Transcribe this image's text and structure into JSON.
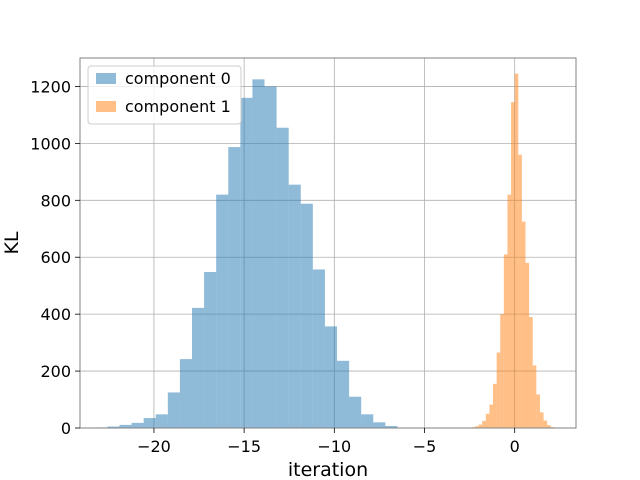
{
  "chart_data": {
    "type": "histogram",
    "title": "",
    "xlabel": "iteration",
    "ylabel": "KL",
    "xlim": [
      -24.1,
      3.4
    ],
    "ylim": [
      0,
      1300
    ],
    "x_ticks": [
      -20,
      -15,
      -10,
      -5,
      0
    ],
    "x_tick_labels": [
      "−20",
      "−15",
      "−10",
      "−5",
      "0"
    ],
    "y_ticks": [
      0,
      200,
      400,
      600,
      800,
      1000,
      1200
    ],
    "y_tick_labels": [
      "0",
      "200",
      "400",
      "600",
      "800",
      "1000",
      "1200"
    ],
    "grid": true,
    "legend_position": "top-left",
    "series": [
      {
        "name": "component 0",
        "color": "#1f77b4",
        "opacity": 0.5,
        "bins": [
          [
            -23.25,
            -22.58,
            2
          ],
          [
            -22.58,
            -21.91,
            5
          ],
          [
            -21.91,
            -21.24,
            11
          ],
          [
            -21.24,
            -20.57,
            18
          ],
          [
            -20.57,
            -19.9,
            35
          ],
          [
            -19.9,
            -19.23,
            48
          ],
          [
            -19.23,
            -18.56,
            125
          ],
          [
            -18.56,
            -17.89,
            242
          ],
          [
            -17.89,
            -17.22,
            422
          ],
          [
            -17.22,
            -16.55,
            548
          ],
          [
            -16.55,
            -15.88,
            820
          ],
          [
            -15.88,
            -15.21,
            987
          ],
          [
            -15.21,
            -14.54,
            1160
          ],
          [
            -14.54,
            -13.87,
            1225
          ],
          [
            -13.87,
            -13.2,
            1200
          ],
          [
            -13.2,
            -12.53,
            1055
          ],
          [
            -12.53,
            -11.86,
            855
          ],
          [
            -11.86,
            -11.19,
            788
          ],
          [
            -11.19,
            -10.52,
            557
          ],
          [
            -10.52,
            -9.85,
            357
          ],
          [
            -9.85,
            -9.18,
            236
          ],
          [
            -9.18,
            -8.51,
            110
          ],
          [
            -8.51,
            -7.84,
            48
          ],
          [
            -7.84,
            -7.17,
            20
          ],
          [
            -7.17,
            -6.5,
            7
          ]
        ]
      },
      {
        "name": "component 1",
        "color": "#ff7f0e",
        "opacity": 0.5,
        "bins": [
          [
            -2.4,
            -2.2,
            3
          ],
          [
            -2.2,
            -2.0,
            6
          ],
          [
            -2.0,
            -1.8,
            12
          ],
          [
            -1.8,
            -1.6,
            25
          ],
          [
            -1.6,
            -1.4,
            50
          ],
          [
            -1.4,
            -1.2,
            82
          ],
          [
            -1.2,
            -1.0,
            155
          ],
          [
            -1.0,
            -0.8,
            265
          ],
          [
            -0.8,
            -0.6,
            400
          ],
          [
            -0.6,
            -0.4,
            610
          ],
          [
            -0.4,
            -0.2,
            820
          ],
          [
            -0.2,
            0.0,
            1145
          ],
          [
            0.0,
            0.2,
            1245
          ],
          [
            0.2,
            0.4,
            960
          ],
          [
            0.4,
            0.6,
            725
          ],
          [
            0.6,
            0.8,
            580
          ],
          [
            0.8,
            1.0,
            390
          ],
          [
            1.0,
            1.2,
            220
          ],
          [
            1.2,
            1.4,
            118
          ],
          [
            1.4,
            1.6,
            55
          ],
          [
            1.6,
            1.8,
            26
          ],
          [
            1.8,
            2.0,
            10
          ],
          [
            2.0,
            2.2,
            3
          ]
        ]
      }
    ]
  }
}
